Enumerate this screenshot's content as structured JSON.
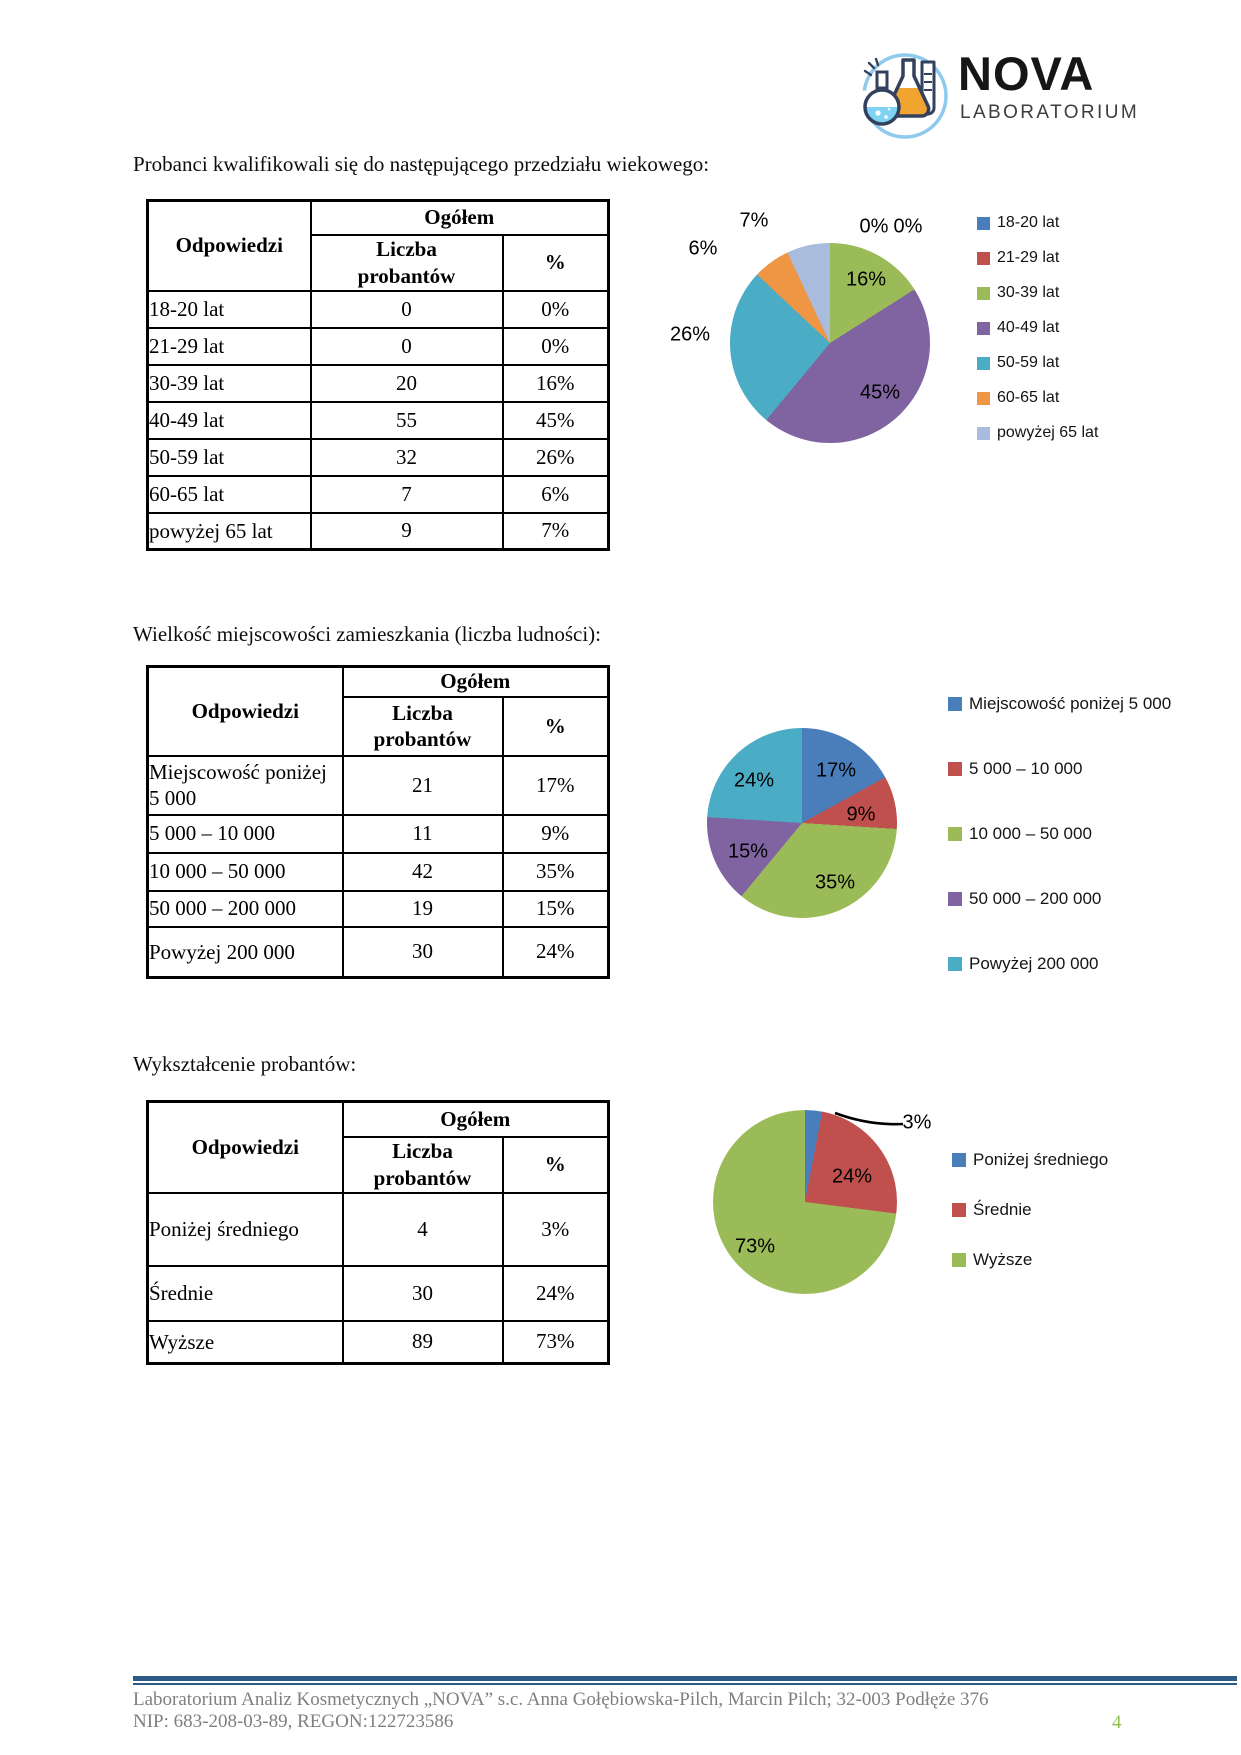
{
  "logo": {
    "title": "NOVA",
    "subtitle": "LABORATORIUM"
  },
  "sections": [
    {
      "heading": "Probanci kwalifikowali się do następującego przedziału wiekowego:"
    },
    {
      "heading": "Wielkość miejscowości zamieszkania (liczba ludności):"
    },
    {
      "heading": "Wykształcenie probantów:"
    }
  ],
  "table_header": {
    "answers": "Odpowiedzi",
    "total": "Ogółem",
    "count": "Liczba\nprobantów",
    "percent": "%"
  },
  "tables": [
    {
      "rows": [
        {
          "label": "18-20 lat",
          "count": "0",
          "percent": "0%"
        },
        {
          "label": "21-29 lat",
          "count": "0",
          "percent": "0%"
        },
        {
          "label": "30-39 lat",
          "count": "20",
          "percent": "16%"
        },
        {
          "label": "40-49 lat",
          "count": "55",
          "percent": "45%"
        },
        {
          "label": "50-59 lat",
          "count": "32",
          "percent": "26%"
        },
        {
          "label": "60-65 lat",
          "count": "7",
          "percent": "6%"
        },
        {
          "label": "powyżej 65 lat",
          "count": "9",
          "percent": "7%"
        }
      ]
    },
    {
      "rows": [
        {
          "label": "Miejscowość poniżej 5 000",
          "count": "21",
          "percent": "17%"
        },
        {
          "label": "5 000 – 10 000",
          "count": "11",
          "percent": "9%"
        },
        {
          "label": "10 000 – 50 000",
          "count": "42",
          "percent": "35%"
        },
        {
          "label": "50 000 – 200 000",
          "count": "19",
          "percent": "15%"
        },
        {
          "label": "Powyżej 200 000",
          "count": "30",
          "percent": "24%"
        }
      ]
    },
    {
      "rows": [
        {
          "label": "Poniżej średniego",
          "count": "4",
          "percent": "3%"
        },
        {
          "label": "Średnie",
          "count": "30",
          "percent": "24%"
        },
        {
          "label": "Wyższe",
          "count": "89",
          "percent": "73%"
        }
      ]
    }
  ],
  "chart_data": [
    {
      "type": "pie",
      "title": "",
      "categories": [
        "18-20 lat",
        "21-29 lat",
        "30-39 lat",
        "40-49 lat",
        "50-59 lat",
        "60-65 lat",
        "powyżej 65 lat"
      ],
      "values": [
        0,
        0,
        16,
        45,
        26,
        6,
        7
      ],
      "labels": [
        "0%",
        "0%",
        "16%",
        "45%",
        "26%",
        "6%",
        "7%"
      ],
      "colors": [
        "#4A7EBB",
        "#C0504D",
        "#9BBB59",
        "#8064A2",
        "#4BACC6",
        "#EE9644",
        "#AABCDE"
      ],
      "unit": "%",
      "legend_position": "right",
      "start_angle_deg": 0,
      "direction": "clockwise"
    },
    {
      "type": "pie",
      "title": "",
      "categories": [
        "Miejscowość poniżej 5 000",
        "5 000 – 10 000",
        "10 000 – 50 000",
        "50 000 – 200 000",
        "Powyżej 200 000"
      ],
      "values": [
        17,
        9,
        35,
        15,
        24
      ],
      "labels": [
        "17%",
        "9%",
        "35%",
        "15%",
        "24%"
      ],
      "colors": [
        "#4A7EBB",
        "#C0504D",
        "#9BBB59",
        "#8064A2",
        "#4BACC6"
      ],
      "unit": "%",
      "legend_position": "right",
      "start_angle_deg": 0,
      "direction": "clockwise"
    },
    {
      "type": "pie",
      "title": "",
      "categories": [
        "Poniżej średniego",
        "Średnie",
        "Wyższe"
      ],
      "values": [
        3,
        24,
        73
      ],
      "labels": [
        "3%",
        "24%",
        "73%"
      ],
      "colors": [
        "#4A7EBB",
        "#C0504D",
        "#9BBB59"
      ],
      "unit": "%",
      "legend_position": "right",
      "start_angle_deg": 0,
      "direction": "clockwise"
    }
  ],
  "footer": {
    "line1": "Laboratorium Analiz Kosmetycznych „NOVA” s.c. Anna Gołębiowska-Pilch, Marcin Pilch; 32-003 Podłęże 376",
    "line2": "NIP: 683-208-03-89, REGON:122723586",
    "page_number": "4"
  }
}
